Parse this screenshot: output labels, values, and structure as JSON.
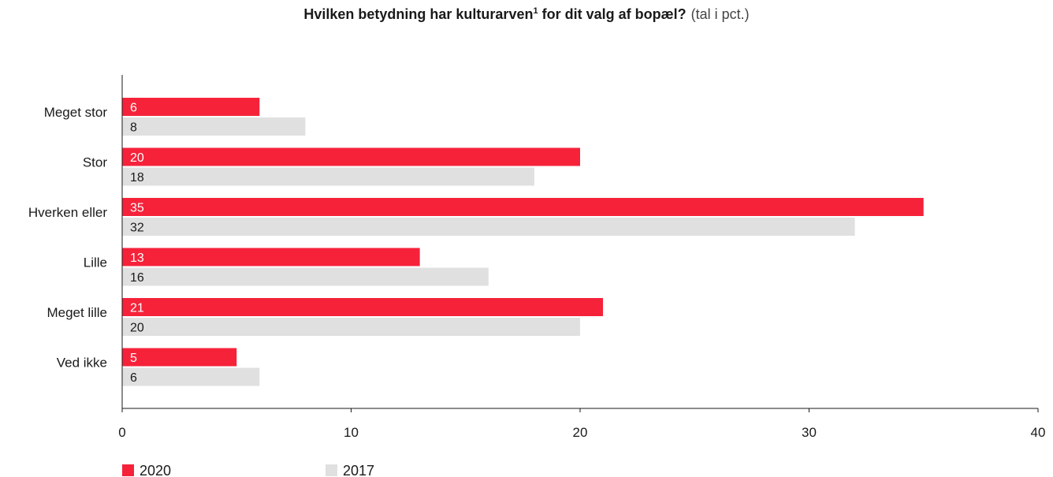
{
  "colors": {
    "s2020": "#f5223a",
    "s2017": "#e0e0e0",
    "axis": "#1a1a1a"
  },
  "chart_data": {
    "type": "bar",
    "orientation": "horizontal",
    "title_main": "Hvilken betydning har kulturarven",
    "title_sup": "1",
    "title_rest": " for dit valg af bopæl?",
    "title_unit": "(tal i pct.)",
    "categories": [
      "Meget stor",
      "Stor",
      "Hverken eller",
      "Lille",
      "Meget lille",
      "Ved ikke"
    ],
    "series": [
      {
        "name": "2020",
        "values": [
          6,
          20,
          35,
          13,
          21,
          5
        ]
      },
      {
        "name": "2017",
        "values": [
          8,
          18,
          32,
          16,
          20,
          6
        ]
      }
    ],
    "xlim": [
      0,
      40
    ],
    "xticks": [
      0,
      10,
      20,
      30,
      40
    ],
    "grid": false,
    "legend_position": "bottom-left"
  }
}
